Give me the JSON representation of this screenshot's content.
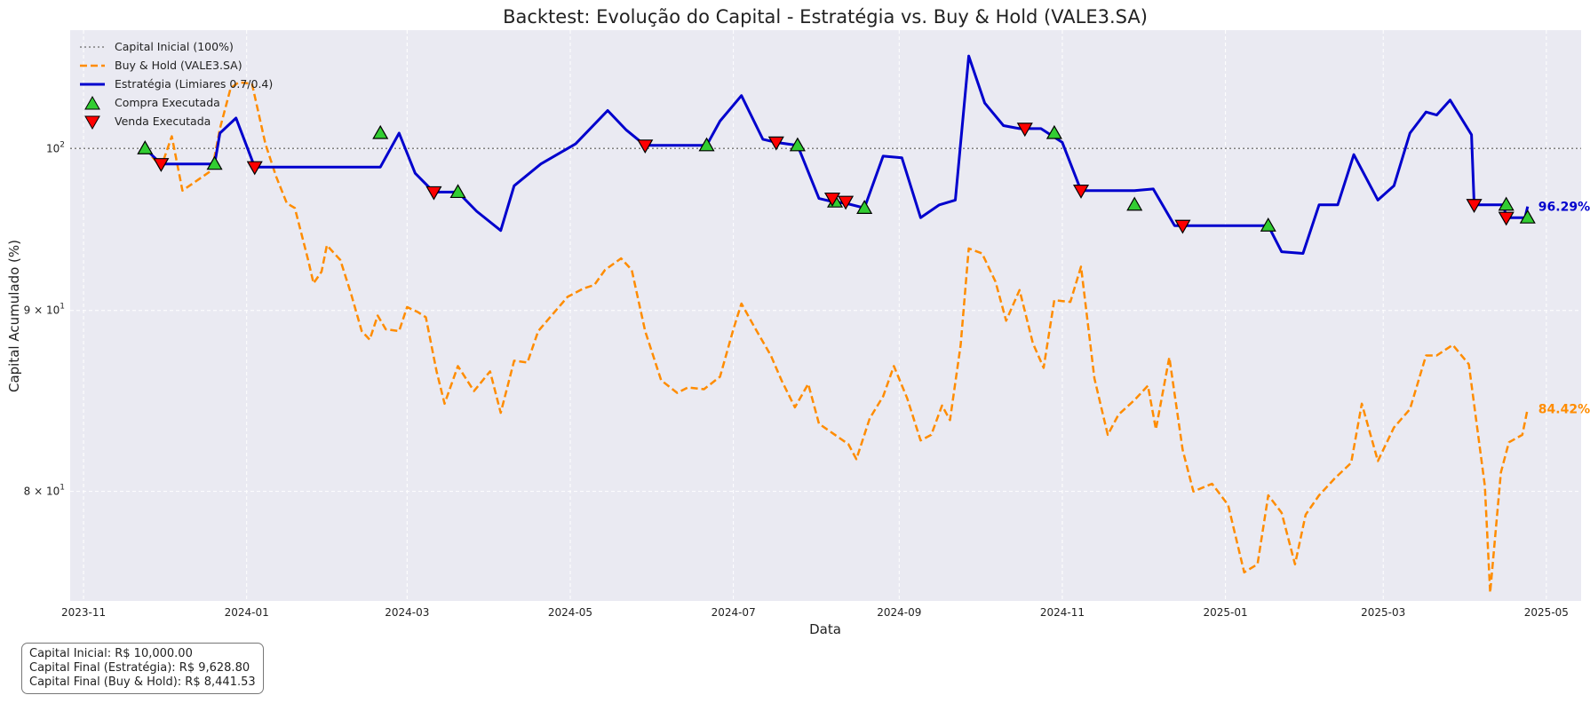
{
  "chart_data": {
    "type": "line",
    "title": "Backtest: Evolução do Capital - Estratégia vs. Buy & Hold (VALE3.SA)",
    "xlabel": "Data",
    "ylabel": "Capital Acumulado (%)",
    "yscale": "log",
    "ylim": [
      74.5,
      108
    ],
    "xlim": [
      "2023-10-27",
      "2025-05-14"
    ],
    "grid": true,
    "legend_position": "top-left",
    "x_ticks": [
      "2023-11",
      "2024-01",
      "2024-03",
      "2024-05",
      "2024-07",
      "2024-09",
      "2024-11",
      "2025-01",
      "2025-03",
      "2025-05"
    ],
    "y_ticks": [
      {
        "value": 100,
        "base": "10",
        "exp": "2",
        "mult": ""
      },
      {
        "value": 90,
        "base": "10",
        "exp": "1",
        "mult": "9 × "
      },
      {
        "value": 80,
        "base": "10",
        "exp": "1",
        "mult": "8 × "
      }
    ],
    "reference_line": {
      "name": "Capital Inicial (100%)",
      "value": 100,
      "color": "#808080"
    },
    "series": [
      {
        "name": "Buy & Hold (VALE3.SA)",
        "color": "#ff8c00",
        "style": "dashed",
        "end_label": "84.42%",
        "points": [
          [
            "2023-11-24",
            100
          ],
          [
            "2023-11-30",
            98.8
          ],
          [
            "2023-12-04",
            100.8
          ],
          [
            "2023-12-08",
            97.3
          ],
          [
            "2023-12-14",
            98.0
          ],
          [
            "2023-12-19",
            98.6
          ],
          [
            "2023-12-22",
            101.3
          ],
          [
            "2023-12-26",
            104.0
          ],
          [
            "2023-12-29",
            104.4
          ],
          [
            "2024-01-03",
            104.3
          ],
          [
            "2024-01-08",
            100.3
          ],
          [
            "2024-01-12",
            98.2
          ],
          [
            "2024-01-16",
            96.5
          ],
          [
            "2024-01-19",
            96.2
          ],
          [
            "2024-01-24",
            93.0
          ],
          [
            "2024-01-26",
            91.6
          ],
          [
            "2024-01-29",
            92.3
          ],
          [
            "2024-01-31",
            93.9
          ],
          [
            "2024-02-05",
            93.0
          ],
          [
            "2024-02-09",
            91.0
          ],
          [
            "2024-02-13",
            88.8
          ],
          [
            "2024-02-16",
            88.3
          ],
          [
            "2024-02-19",
            89.7
          ],
          [
            "2024-02-22",
            88.9
          ],
          [
            "2024-02-27",
            88.8
          ],
          [
            "2024-03-01",
            90.2
          ],
          [
            "2024-03-05",
            89.9
          ],
          [
            "2024-03-08",
            89.6
          ],
          [
            "2024-03-12",
            86.5
          ],
          [
            "2024-03-15",
            84.7
          ],
          [
            "2024-03-20",
            86.8
          ],
          [
            "2024-03-26",
            85.4
          ],
          [
            "2024-04-01",
            86.5
          ],
          [
            "2024-04-05",
            84.2
          ],
          [
            "2024-04-10",
            87.1
          ],
          [
            "2024-04-15",
            87.0
          ],
          [
            "2024-04-19",
            88.8
          ],
          [
            "2024-04-24",
            89.7
          ],
          [
            "2024-04-30",
            90.8
          ],
          [
            "2024-05-06",
            91.3
          ],
          [
            "2024-05-10",
            91.5
          ],
          [
            "2024-05-14",
            92.4
          ],
          [
            "2024-05-20",
            93.1
          ],
          [
            "2024-05-24",
            92.4
          ],
          [
            "2024-05-29",
            88.8
          ],
          [
            "2024-06-04",
            86.0
          ],
          [
            "2024-06-10",
            85.3
          ],
          [
            "2024-06-14",
            85.6
          ],
          [
            "2024-06-20",
            85.5
          ],
          [
            "2024-06-26",
            86.2
          ],
          [
            "2024-07-01",
            88.9
          ],
          [
            "2024-07-04",
            90.4
          ],
          [
            "2024-07-09",
            89.0
          ],
          [
            "2024-07-15",
            87.4
          ],
          [
            "2024-07-19",
            86.0
          ],
          [
            "2024-07-24",
            84.5
          ],
          [
            "2024-07-29",
            85.8
          ],
          [
            "2024-08-02",
            83.6
          ],
          [
            "2024-08-07",
            83.1
          ],
          [
            "2024-08-13",
            82.5
          ],
          [
            "2024-08-16",
            81.7
          ],
          [
            "2024-08-21",
            83.9
          ],
          [
            "2024-08-26",
            85.1
          ],
          [
            "2024-08-30",
            86.8
          ],
          [
            "2024-09-04",
            85.0
          ],
          [
            "2024-09-09",
            82.7
          ],
          [
            "2024-09-13",
            83.0
          ],
          [
            "2024-09-17",
            84.6
          ],
          [
            "2024-09-20",
            83.8
          ],
          [
            "2024-09-24",
            88.0
          ],
          [
            "2024-09-27",
            93.7
          ],
          [
            "2024-10-02",
            93.4
          ],
          [
            "2024-10-07",
            91.7
          ],
          [
            "2024-10-11",
            89.4
          ],
          [
            "2024-10-16",
            91.2
          ],
          [
            "2024-10-21",
            88.1
          ],
          [
            "2024-10-25",
            86.7
          ],
          [
            "2024-10-29",
            90.6
          ],
          [
            "2024-11-04",
            90.5
          ],
          [
            "2024-11-08",
            92.6
          ],
          [
            "2024-11-13",
            86.1
          ],
          [
            "2024-11-18",
            83.0
          ],
          [
            "2024-11-22",
            84.1
          ],
          [
            "2024-11-28",
            84.9
          ],
          [
            "2024-12-03",
            85.7
          ],
          [
            "2024-12-06",
            83.3
          ],
          [
            "2024-12-11",
            87.3
          ],
          [
            "2024-12-16",
            82.2
          ],
          [
            "2024-12-20",
            80.0
          ],
          [
            "2024-12-27",
            80.4
          ],
          [
            "2025-01-02",
            79.3
          ],
          [
            "2025-01-08",
            75.9
          ],
          [
            "2025-01-13",
            76.3
          ],
          [
            "2025-01-17",
            79.8
          ],
          [
            "2025-01-22",
            78.9
          ],
          [
            "2025-01-27",
            76.3
          ],
          [
            "2025-01-31",
            78.8
          ],
          [
            "2025-02-05",
            79.8
          ],
          [
            "2025-02-11",
            80.7
          ],
          [
            "2025-02-17",
            81.5
          ],
          [
            "2025-02-21",
            84.7
          ],
          [
            "2025-02-27",
            81.6
          ],
          [
            "2025-03-05",
            83.4
          ],
          [
            "2025-03-11",
            84.4
          ],
          [
            "2025-03-17",
            87.4
          ],
          [
            "2025-03-21",
            87.4
          ],
          [
            "2025-03-27",
            88.0
          ],
          [
            "2025-04-02",
            86.9
          ],
          [
            "2025-04-08",
            80.3
          ],
          [
            "2025-04-10",
            74.9
          ],
          [
            "2025-04-14",
            81.0
          ],
          [
            "2025-04-17",
            82.6
          ],
          [
            "2025-04-22",
            83.0
          ],
          [
            "2025-04-24",
            84.42
          ]
        ]
      },
      {
        "name": "Estratégia (Limiares 0.7/0.4)",
        "color": "#0000cd",
        "style": "solid",
        "end_label": "96.29%",
        "points": [
          [
            "2023-11-24",
            100
          ],
          [
            "2023-11-30",
            99.0
          ],
          [
            "2023-12-20",
            99.0
          ],
          [
            "2023-12-22",
            101.0
          ],
          [
            "2023-12-28",
            102.0
          ],
          [
            "2024-01-04",
            98.8
          ],
          [
            "2024-02-20",
            98.8
          ],
          [
            "2024-02-27",
            101.0
          ],
          [
            "2024-03-04",
            98.4
          ],
          [
            "2024-03-11",
            97.2
          ],
          [
            "2024-03-20",
            97.2
          ],
          [
            "2024-03-27",
            96.0
          ],
          [
            "2024-04-05",
            94.8
          ],
          [
            "2024-04-10",
            97.6
          ],
          [
            "2024-04-20",
            99.0
          ],
          [
            "2024-05-03",
            100.3
          ],
          [
            "2024-05-15",
            102.5
          ],
          [
            "2024-05-22",
            101.2
          ],
          [
            "2024-05-29",
            100.2
          ],
          [
            "2024-06-21",
            100.2
          ],
          [
            "2024-06-26",
            101.8
          ],
          [
            "2024-07-04",
            103.5
          ],
          [
            "2024-07-12",
            100.6
          ],
          [
            "2024-07-17",
            100.4
          ],
          [
            "2024-07-25",
            100.2
          ],
          [
            "2024-08-02",
            96.8
          ],
          [
            "2024-08-07",
            96.6
          ],
          [
            "2024-08-12",
            96.5
          ],
          [
            "2024-08-19",
            96.2
          ],
          [
            "2024-08-26",
            99.5
          ],
          [
            "2024-09-02",
            99.4
          ],
          [
            "2024-09-09",
            95.6
          ],
          [
            "2024-09-16",
            96.4
          ],
          [
            "2024-09-22",
            96.7
          ],
          [
            "2024-09-27",
            106.2
          ],
          [
            "2024-10-03",
            103.0
          ],
          [
            "2024-10-10",
            101.5
          ],
          [
            "2024-10-16",
            101.3
          ],
          [
            "2024-10-24",
            101.3
          ],
          [
            "2024-11-01",
            100.4
          ],
          [
            "2024-11-08",
            97.3
          ],
          [
            "2024-11-28",
            97.3
          ],
          [
            "2024-12-05",
            97.4
          ],
          [
            "2024-12-13",
            95.1
          ],
          [
            "2024-12-16",
            95.1
          ],
          [
            "2025-01-17",
            95.1
          ],
          [
            "2025-01-22",
            93.5
          ],
          [
            "2025-01-30",
            93.4
          ],
          [
            "2025-02-05",
            96.4
          ],
          [
            "2025-02-12",
            96.4
          ],
          [
            "2025-02-18",
            99.6
          ],
          [
            "2025-02-27",
            96.7
          ],
          [
            "2025-03-05",
            97.6
          ],
          [
            "2025-03-11",
            101.0
          ],
          [
            "2025-03-17",
            102.4
          ],
          [
            "2025-03-21",
            102.2
          ],
          [
            "2025-03-26",
            103.2
          ],
          [
            "2025-04-03",
            100.9
          ],
          [
            "2025-04-04",
            96.4
          ],
          [
            "2025-04-15",
            96.4
          ],
          [
            "2025-04-16",
            95.6
          ],
          [
            "2025-04-23",
            95.6
          ],
          [
            "2025-04-24",
            96.29
          ]
        ]
      }
    ],
    "markers": [
      {
        "name": "Compra Executada",
        "shape": "triangle-up",
        "color": "#32cd32",
        "points": [
          [
            "2023-11-24",
            100
          ],
          [
            "2023-12-20",
            99.0
          ],
          [
            "2024-02-20",
            101.0
          ],
          [
            "2024-03-20",
            97.2
          ],
          [
            "2024-06-21",
            100.2
          ],
          [
            "2024-07-25",
            100.2
          ],
          [
            "2024-08-08",
            96.6
          ],
          [
            "2024-08-19",
            96.2
          ],
          [
            "2024-10-29",
            101.0
          ],
          [
            "2024-11-28",
            96.4
          ],
          [
            "2025-01-17",
            95.1
          ],
          [
            "2025-04-16",
            96.4
          ],
          [
            "2025-04-24",
            95.6
          ]
        ]
      },
      {
        "name": "Venda Executada",
        "shape": "triangle-down",
        "color": "#ff0000",
        "points": [
          [
            "2023-11-30",
            99.0
          ],
          [
            "2024-01-04",
            98.8
          ],
          [
            "2024-03-11",
            97.2
          ],
          [
            "2024-05-29",
            100.2
          ],
          [
            "2024-07-17",
            100.4
          ],
          [
            "2024-08-07",
            96.8
          ],
          [
            "2024-08-12",
            96.6
          ],
          [
            "2024-10-18",
            101.3
          ],
          [
            "2024-11-08",
            97.3
          ],
          [
            "2024-12-16",
            95.1
          ],
          [
            "2025-04-04",
            96.4
          ],
          [
            "2025-04-16",
            95.6
          ]
        ]
      }
    ],
    "legend": {
      "reference": "Capital Inicial (100%)",
      "buy_hold": "Buy & Hold (VALE3.SA)",
      "strategy": "Estratégia (Limiares 0.7/0.4)",
      "buy": "Compra Executada",
      "sell": "Venda Executada"
    }
  },
  "info_box": {
    "initial_capital": "Capital Inicial: R$ 10,000.00",
    "final_strategy": "Capital Final (Estratégia): R$ 9,628.80",
    "final_buy_hold": "Capital Final (Buy & Hold): R$ 8,441.53"
  },
  "colors": {
    "plot_background": "#eaeaf2",
    "grid": "#ffffff",
    "buy_hold": "#ff8c00",
    "strategy": "#0000cd",
    "buy": "#32cd32",
    "sell": "#ff0000",
    "reference": "#808080"
  }
}
